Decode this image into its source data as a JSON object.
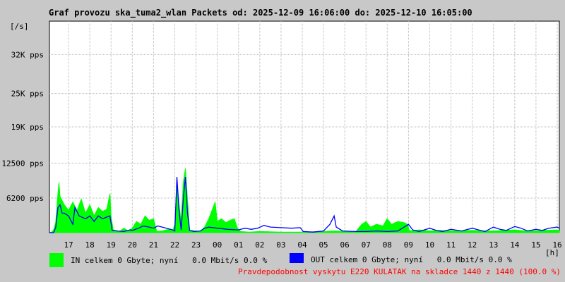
{
  "title": "Graf provozu ska_tuma2_wlan Packets od: 2025-12-09 16:06:00 do: 2025-12-10 16:05:00",
  "chart_data": {
    "type": "area",
    "title": "Graf provozu ska_tuma2_wlan Packets od: 2025-12-09 16:06:00 do: 2025-12-10 16:05:00",
    "y_unit_label": "[/s]",
    "x_unit_label": "[h]",
    "ylim": [
      0,
      38000
    ],
    "y_ticks": [
      {
        "value": 6200,
        "label": "6200 pps"
      },
      {
        "value": 12500,
        "label": "12500 pps"
      },
      {
        "value": 19000,
        "label": "19K pps"
      },
      {
        "value": 25000,
        "label": "25K pps"
      },
      {
        "value": 32000,
        "label": "32K pps"
      }
    ],
    "x_range_hours": [
      16.1,
      40.1
    ],
    "x_ticks": [
      {
        "value": 17,
        "label": "17"
      },
      {
        "value": 18,
        "label": "18"
      },
      {
        "value": 19,
        "label": "19"
      },
      {
        "value": 20,
        "label": "20"
      },
      {
        "value": 21,
        "label": "21"
      },
      {
        "value": 22,
        "label": "22"
      },
      {
        "value": 23,
        "label": "23"
      },
      {
        "value": 24,
        "label": "00"
      },
      {
        "value": 25,
        "label": "01"
      },
      {
        "value": 26,
        "label": "02"
      },
      {
        "value": 27,
        "label": "03"
      },
      {
        "value": 28,
        "label": "04"
      },
      {
        "value": 29,
        "label": "05"
      },
      {
        "value": 30,
        "label": "06"
      },
      {
        "value": 31,
        "label": "07"
      },
      {
        "value": 32,
        "label": "08"
      },
      {
        "value": 33,
        "label": "09"
      },
      {
        "value": 34,
        "label": "10"
      },
      {
        "value": 35,
        "label": "11"
      },
      {
        "value": 36,
        "label": "12"
      },
      {
        "value": 37,
        "label": "13"
      },
      {
        "value": 38,
        "label": "14"
      },
      {
        "value": 39,
        "label": "15"
      },
      {
        "value": 40,
        "label": "16"
      }
    ],
    "grid": true,
    "series": [
      {
        "name": "IN",
        "color": "#00ff00",
        "style": "area",
        "points": [
          [
            16.1,
            0
          ],
          [
            16.2,
            100
          ],
          [
            16.3,
            500
          ],
          [
            16.4,
            2000
          ],
          [
            16.5,
            7000
          ],
          [
            16.55,
            9000
          ],
          [
            16.6,
            6500
          ],
          [
            16.8,
            5000
          ],
          [
            17.0,
            4000
          ],
          [
            17.2,
            5500
          ],
          [
            17.4,
            4000
          ],
          [
            17.6,
            6000
          ],
          [
            17.8,
            3500
          ],
          [
            18.0,
            5000
          ],
          [
            18.2,
            3000
          ],
          [
            18.4,
            4500
          ],
          [
            18.6,
            3800
          ],
          [
            18.8,
            4200
          ],
          [
            18.95,
            7000
          ],
          [
            19.0,
            3000
          ],
          [
            19.1,
            500
          ],
          [
            19.4,
            200
          ],
          [
            19.6,
            800
          ],
          [
            19.8,
            300
          ],
          [
            20.0,
            800
          ],
          [
            20.2,
            2000
          ],
          [
            20.4,
            1500
          ],
          [
            20.6,
            3000
          ],
          [
            20.8,
            2200
          ],
          [
            21.0,
            2500
          ],
          [
            21.15,
            200
          ],
          [
            21.4,
            300
          ],
          [
            21.7,
            600
          ],
          [
            21.9,
            300
          ],
          [
            22.0,
            1500
          ],
          [
            22.1,
            9000
          ],
          [
            22.2,
            5000
          ],
          [
            22.3,
            2000
          ],
          [
            22.4,
            9000
          ],
          [
            22.5,
            11500
          ],
          [
            22.6,
            6000
          ],
          [
            22.7,
            300
          ],
          [
            22.8,
            400
          ],
          [
            23.0,
            300
          ],
          [
            23.2,
            200
          ],
          [
            23.4,
            1000
          ],
          [
            23.6,
            2500
          ],
          [
            23.8,
            4500
          ],
          [
            23.9,
            5500
          ],
          [
            24.0,
            2000
          ],
          [
            24.2,
            2500
          ],
          [
            24.4,
            1800
          ],
          [
            24.6,
            2200
          ],
          [
            24.8,
            2500
          ],
          [
            24.95,
            800
          ],
          [
            25.1,
            200
          ],
          [
            25.5,
            100
          ],
          [
            26.0,
            200
          ],
          [
            27.0,
            100
          ],
          [
            28.0,
            100
          ],
          [
            29.0,
            200
          ],
          [
            29.5,
            300
          ],
          [
            30.0,
            200
          ],
          [
            30.5,
            100
          ],
          [
            30.8,
            1500
          ],
          [
            31.0,
            2000
          ],
          [
            31.2,
            1000
          ],
          [
            31.5,
            1500
          ],
          [
            31.8,
            1200
          ],
          [
            32.0,
            2500
          ],
          [
            32.2,
            1500
          ],
          [
            32.5,
            2000
          ],
          [
            32.8,
            1800
          ],
          [
            32.95,
            1500
          ],
          [
            33.05,
            300
          ],
          [
            33.5,
            500
          ],
          [
            34.0,
            300
          ],
          [
            34.5,
            400
          ],
          [
            35.0,
            300
          ],
          [
            35.5,
            300
          ],
          [
            36.0,
            400
          ],
          [
            36.5,
            300
          ],
          [
            37.0,
            300
          ],
          [
            37.5,
            400
          ],
          [
            38.0,
            500
          ],
          [
            38.5,
            300
          ],
          [
            39.0,
            300
          ],
          [
            39.5,
            400
          ],
          [
            40.0,
            500
          ],
          [
            40.1,
            300
          ]
        ]
      },
      {
        "name": "OUT",
        "color": "#0000ff",
        "style": "line",
        "points": [
          [
            16.1,
            0
          ],
          [
            16.3,
            0
          ],
          [
            16.4,
            1000
          ],
          [
            16.5,
            4500
          ],
          [
            16.6,
            5000
          ],
          [
            16.7,
            3500
          ],
          [
            16.8,
            3500
          ],
          [
            17.0,
            3000
          ],
          [
            17.2,
            1500
          ],
          [
            17.3,
            4500
          ],
          [
            17.5,
            3000
          ],
          [
            17.8,
            2500
          ],
          [
            18.0,
            3000
          ],
          [
            18.2,
            2000
          ],
          [
            18.4,
            3000
          ],
          [
            18.6,
            2500
          ],
          [
            18.8,
            2800
          ],
          [
            18.95,
            3000
          ],
          [
            19.05,
            400
          ],
          [
            19.3,
            300
          ],
          [
            19.6,
            200
          ],
          [
            19.9,
            500
          ],
          [
            20.0,
            400
          ],
          [
            20.3,
            800
          ],
          [
            20.5,
            1200
          ],
          [
            20.8,
            1000
          ],
          [
            21.0,
            800
          ],
          [
            21.2,
            1200
          ],
          [
            21.5,
            900
          ],
          [
            21.9,
            500
          ],
          [
            22.0,
            300
          ],
          [
            22.05,
            5000
          ],
          [
            22.1,
            10000
          ],
          [
            22.2,
            4000
          ],
          [
            22.3,
            500
          ],
          [
            22.4,
            6000
          ],
          [
            22.5,
            10000
          ],
          [
            22.6,
            3500
          ],
          [
            22.7,
            400
          ],
          [
            22.9,
            200
          ],
          [
            23.2,
            300
          ],
          [
            23.4,
            800
          ],
          [
            23.6,
            1000
          ],
          [
            24.0,
            800
          ],
          [
            24.5,
            600
          ],
          [
            25.0,
            500
          ],
          [
            25.3,
            800
          ],
          [
            25.6,
            600
          ],
          [
            25.9,
            800
          ],
          [
            26.2,
            1300
          ],
          [
            26.5,
            1000
          ],
          [
            27.0,
            900
          ],
          [
            27.5,
            800
          ],
          [
            27.9,
            900
          ],
          [
            28.05,
            200
          ],
          [
            28.5,
            100
          ],
          [
            29.0,
            300
          ],
          [
            29.3,
            1500
          ],
          [
            29.5,
            3000
          ],
          [
            29.6,
            1000
          ],
          [
            29.9,
            300
          ],
          [
            30.5,
            200
          ],
          [
            31.0,
            200
          ],
          [
            31.5,
            300
          ],
          [
            32.0,
            200
          ],
          [
            32.5,
            300
          ],
          [
            33.0,
            1500
          ],
          [
            33.2,
            500
          ],
          [
            33.5,
            200
          ],
          [
            34.0,
            800
          ],
          [
            34.3,
            400
          ],
          [
            34.6,
            200
          ],
          [
            35.0,
            600
          ],
          [
            35.5,
            300
          ],
          [
            36.0,
            800
          ],
          [
            36.3,
            500
          ],
          [
            36.6,
            200
          ],
          [
            37.0,
            1000
          ],
          [
            37.3,
            600
          ],
          [
            37.6,
            400
          ],
          [
            38.0,
            1100
          ],
          [
            38.3,
            800
          ],
          [
            38.6,
            300
          ],
          [
            39.0,
            600
          ],
          [
            39.3,
            400
          ],
          [
            39.6,
            800
          ],
          [
            40.0,
            1000
          ],
          [
            40.1,
            800
          ]
        ]
      }
    ]
  },
  "legend": {
    "in_text": "IN celkem 0 Gbyte; nyní   0.0 Mbit/s 0.0 %",
    "out_text": "OUT celkem 0 Gbyte; nyní   0.0 Mbit/s 0.0 %"
  },
  "footer": "Pravdepodobnost vyskytu E220 KULATAK na skladce 1440 z 1440 (100.0 %)"
}
